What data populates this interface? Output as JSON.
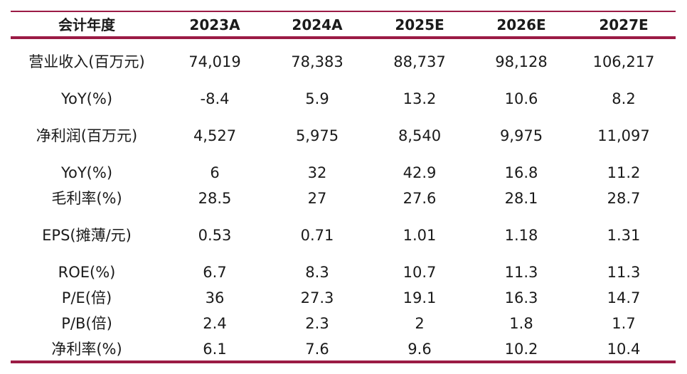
{
  "header": [
    "会计年度",
    "2023A",
    "2024A",
    "2025E",
    "2026E",
    "2027E"
  ],
  "rows": [
    [
      "营业收入(百万元)",
      "74,019",
      "78,383",
      "88,737",
      "98,128",
      "106,217"
    ],
    [
      "YoY(%)",
      "-8.4",
      "5.9",
      "13.2",
      "10.6",
      "8.2"
    ],
    [
      "净利润(百万元)",
      "4,527",
      "5,975",
      "8,540",
      "9,975",
      "11,097"
    ],
    [
      "YoY(%)",
      "6",
      "32",
      "42.9",
      "16.8",
      "11.2"
    ],
    [
      "毛利率(%)",
      "28.5",
      "27",
      "27.6",
      "28.1",
      "28.7"
    ],
    [
      "EPS(摊薄/元)",
      "0.53",
      "0.71",
      "1.01",
      "1.18",
      "1.31"
    ],
    [
      "ROE(%)",
      "6.7",
      "8.3",
      "10.7",
      "11.3",
      "11.3"
    ],
    [
      "P/E(倍)",
      "36",
      "27.3",
      "19.1",
      "16.3",
      "14.7"
    ],
    [
      "P/B(倍)",
      "2.4",
      "2.3",
      "2",
      "1.8",
      "1.7"
    ],
    [
      "净利率(%)",
      "6.1",
      "7.6",
      "9.6",
      "10.2",
      "10.4"
    ]
  ],
  "colors": {
    "rule": "#9b1b45"
  }
}
